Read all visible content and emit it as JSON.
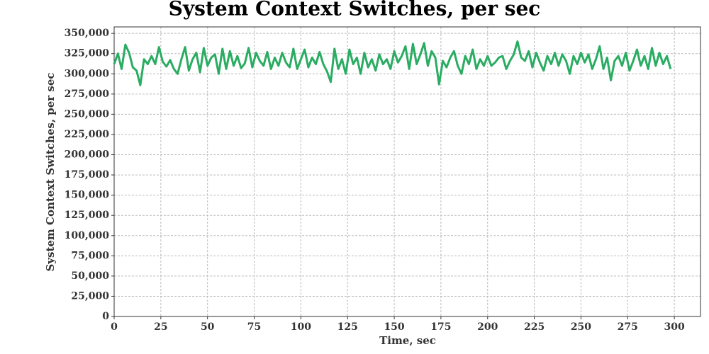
{
  "chart_data": {
    "type": "line",
    "title": "System Context Switches, per sec",
    "x_label": "Time, sec",
    "y_label": "System Context Switches, per sec",
    "xlim": [
      0,
      314
    ],
    "ylim": [
      0,
      358000
    ],
    "xticks": [
      0,
      25,
      50,
      75,
      100,
      125,
      150,
      175,
      200,
      225,
      250,
      275,
      300
    ],
    "yticks": [
      0,
      {
        "value": 25000,
        "label": "25,000"
      },
      {
        "value": 50000,
        "label": "50,000"
      },
      {
        "value": 75000,
        "label": "75,000"
      },
      {
        "value": 100000,
        "label": "100,000"
      },
      {
        "value": 125000,
        "label": "125,000"
      },
      {
        "value": 150000,
        "label": "150,000"
      },
      {
        "value": 175000,
        "label": "175,000"
      },
      {
        "value": 200000,
        "label": "200,000"
      },
      {
        "value": 225000,
        "label": "225,000"
      },
      {
        "value": 250000,
        "label": "250,000"
      },
      {
        "value": 275000,
        "label": "275,000"
      },
      {
        "value": 300000,
        "label": "300,000"
      },
      {
        "value": 325000,
        "label": "325,000"
      },
      {
        "value": 350000,
        "label": "350,000"
      }
    ],
    "grid": true,
    "x": [
      0,
      2,
      4,
      6,
      8,
      10,
      12,
      14,
      16,
      18,
      20,
      22,
      24,
      26,
      28,
      30,
      32,
      34,
      36,
      38,
      40,
      42,
      44,
      46,
      48,
      50,
      52,
      54,
      56,
      58,
      60,
      62,
      64,
      66,
      68,
      70,
      72,
      74,
      76,
      78,
      80,
      82,
      84,
      86,
      88,
      90,
      92,
      94,
      96,
      98,
      100,
      102,
      104,
      106,
      108,
      110,
      112,
      114,
      116,
      118,
      120,
      122,
      124,
      126,
      128,
      130,
      132,
      134,
      136,
      138,
      140,
      142,
      144,
      146,
      148,
      150,
      152,
      154,
      156,
      158,
      160,
      162,
      164,
      166,
      168,
      170,
      172,
      174,
      176,
      178,
      180,
      182,
      184,
      186,
      188,
      190,
      192,
      194,
      196,
      198,
      200,
      202,
      204,
      206,
      208,
      210,
      212,
      214,
      216,
      218,
      220,
      222,
      224,
      226,
      228,
      230,
      232,
      234,
      236,
      238,
      240,
      242,
      244,
      246,
      248,
      250,
      252,
      254,
      256,
      258,
      260,
      262,
      264,
      266,
      268,
      270,
      272,
      274,
      276,
      278,
      280,
      282,
      284,
      286,
      288,
      290,
      292,
      294,
      296,
      298
    ],
    "series": [
      {
        "color": "#2aac62",
        "values": [
          312000,
          325000,
          306000,
          336000,
          326000,
          308000,
          304000,
          286000,
          318000,
          312000,
          322000,
          312000,
          333000,
          315000,
          309000,
          317000,
          306000,
          300000,
          318000,
          333000,
          304000,
          318000,
          326000,
          302000,
          332000,
          310000,
          320000,
          324000,
          300000,
          331000,
          306000,
          328000,
          310000,
          322000,
          307000,
          313000,
          332000,
          308000,
          326000,
          316000,
          310000,
          327000,
          306000,
          320000,
          310000,
          326000,
          314000,
          308000,
          331000,
          306000,
          318000,
          330000,
          308000,
          320000,
          312000,
          327000,
          312000,
          303000,
          290000,
          331000,
          306000,
          318000,
          300000,
          330000,
          312000,
          320000,
          300000,
          326000,
          308000,
          318000,
          304000,
          324000,
          312000,
          318000,
          306000,
          328000,
          314000,
          322000,
          334000,
          306000,
          337000,
          312000,
          324000,
          338000,
          310000,
          328000,
          320000,
          287000,
          316000,
          308000,
          320000,
          328000,
          310000,
          300000,
          322000,
          312000,
          330000,
          306000,
          318000,
          310000,
          322000,
          310000,
          314000,
          320000,
          322000,
          306000,
          316000,
          324000,
          340000,
          320000,
          316000,
          328000,
          308000,
          326000,
          314000,
          304000,
          322000,
          312000,
          326000,
          310000,
          324000,
          316000,
          300000,
          322000,
          312000,
          326000,
          314000,
          324000,
          306000,
          318000,
          334000,
          306000,
          320000,
          292000,
          316000,
          322000,
          310000,
          326000,
          304000,
          316000,
          330000,
          310000,
          322000,
          306000,
          332000,
          310000,
          326000,
          312000,
          322000,
          306000
        ]
      }
    ]
  }
}
